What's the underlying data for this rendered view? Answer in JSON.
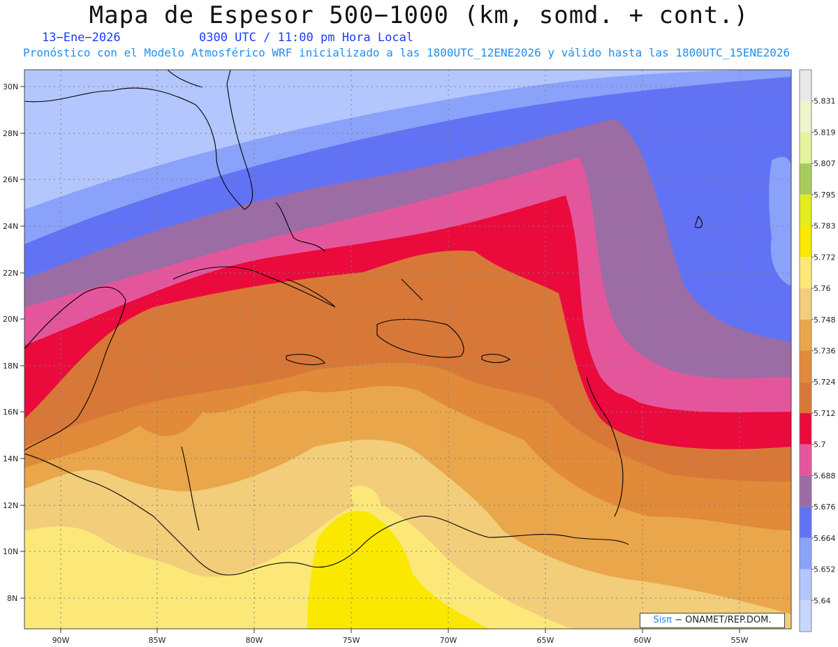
{
  "title": "Mapa de Espesor 500−1000 (km, somd. + cont.)",
  "date": "13−Ene−2026",
  "time": "0300 UTC / 11:00 pm Hora Local",
  "subtitle": "Pronóstico con el Modelo Atmosférico WRF inicializado a las 1800UTC_12ENE2026 y válido hasta las  1800UTC_15ENE2026",
  "credit": {
    "brand": "Sisπ",
    "text": "− ONAMET/REP.DOM."
  },
  "lat_labels": [
    "30N",
    "28N",
    "26N",
    "24N",
    "22N",
    "20N",
    "18N",
    "16N",
    "14N",
    "12N",
    "10N",
    "8N"
  ],
  "lon_labels": [
    "90W",
    "85W",
    "80W",
    "75W",
    "70W",
    "65W",
    "60W",
    "55W"
  ],
  "colorbar": {
    "labels": [
      "5.831",
      "5.819",
      "5.807",
      "5.795",
      "5.783",
      "5.772",
      "5.76",
      "5.748",
      "5.736",
      "5.724",
      "5.712",
      "5.7",
      "5.688",
      "5.676",
      "5.664",
      "5.652",
      "5.64"
    ],
    "colors": [
      "#e8e8e8",
      "#f0f4cc",
      "#e4f49c",
      "#a8cc5c",
      "#e2ec1c",
      "#fae800",
      "#fbe879",
      "#f2cd7a",
      "#eaa64a",
      "#e08a3a",
      "#d87838",
      "#ea0a3c",
      "#e4569c",
      "#9c6ca4",
      "#6272f4",
      "#8aa2fa",
      "#b4c6fe",
      "#c8d6fe"
    ]
  }
}
